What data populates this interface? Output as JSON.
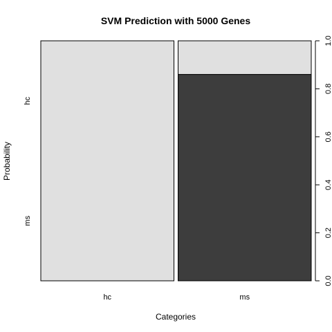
{
  "chart_data": {
    "type": "spineplot",
    "title": "SVM Prediction with 5000 Genes",
    "xlabel": "Categories",
    "ylabel": "Probability",
    "x_categories": [
      "hc",
      "ms"
    ],
    "y_levels": [
      "ms",
      "hc"
    ],
    "x_widths": [
      0.5,
      0.5
    ],
    "columns": [
      {
        "category": "hc",
        "values": {
          "ms": 0.0,
          "hc": 1.0
        }
      },
      {
        "category": "ms",
        "values": {
          "ms": 0.86,
          "hc": 0.14
        }
      }
    ],
    "y_axis_right": {
      "ticks": [
        0.0,
        0.2,
        0.4,
        0.6,
        0.8,
        1.0
      ],
      "labels": [
        "0.0",
        "0.2",
        "0.4",
        "0.6",
        "0.8",
        "1.0"
      ],
      "ylim": [
        0,
        1
      ]
    },
    "colors": {
      "ms": "#3d3d3d",
      "hc": "#e0e0e0",
      "border": "#000000"
    }
  }
}
